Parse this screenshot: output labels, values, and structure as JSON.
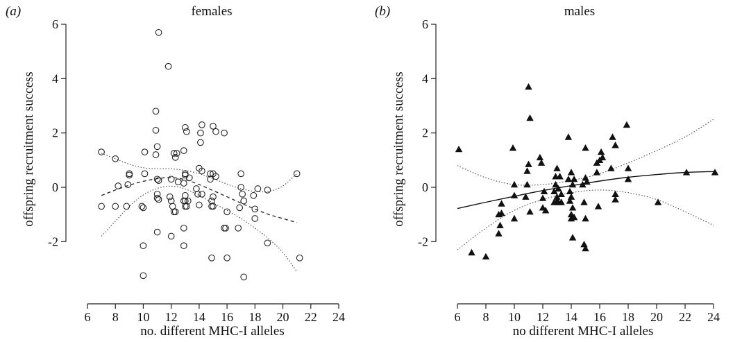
{
  "chart_data": [
    {
      "type": "scatter",
      "panel_letter": "(a)",
      "title": "females",
      "xlabel": "no. different MHC-I alleles",
      "ylabel": "offspring recruitment success",
      "xlim": [
        6,
        24
      ],
      "ylim": [
        -3.6,
        6.3
      ],
      "xticks": [
        6,
        8,
        10,
        12,
        14,
        16,
        18,
        20,
        22,
        24
      ],
      "yticks": [
        -2,
        0,
        2,
        4,
        6
      ],
      "marker": "open-circle",
      "grid": false,
      "points": [
        {
          "x": 7,
          "y": 1.3
        },
        {
          "x": 7,
          "y": -0.7
        },
        {
          "x": 8,
          "y": 1.05
        },
        {
          "x": 8,
          "y": -0.7
        },
        {
          "x": 8.2,
          "y": 0.05
        },
        {
          "x": 8.8,
          "y": -0.7
        },
        {
          "x": 8.9,
          "y": 0.1
        },
        {
          "x": 9,
          "y": 0.45
        },
        {
          "x": 9,
          "y": 0.5
        },
        {
          "x": 9.9,
          "y": -0.7
        },
        {
          "x": 10,
          "y": -0.75
        },
        {
          "x": 10,
          "y": -2.15
        },
        {
          "x": 10,
          "y": -3.25
        },
        {
          "x": 10.1,
          "y": 1.3
        },
        {
          "x": 10.1,
          "y": 0.5
        },
        {
          "x": 10.9,
          "y": 2.8
        },
        {
          "x": 10.9,
          "y": 2.1
        },
        {
          "x": 10.9,
          "y": 1.2
        },
        {
          "x": 11,
          "y": 1.5
        },
        {
          "x": 11,
          "y": 0.3
        },
        {
          "x": 11,
          "y": -0.25
        },
        {
          "x": 11,
          "y": -0.4
        },
        {
          "x": 11.1,
          "y": -0.45
        },
        {
          "x": 11,
          "y": -1.65
        },
        {
          "x": 11.1,
          "y": 5.7
        },
        {
          "x": 11.1,
          "y": 0.25
        },
        {
          "x": 11.8,
          "y": 4.45
        },
        {
          "x": 11.9,
          "y": -0.35
        },
        {
          "x": 12,
          "y": -0.5
        },
        {
          "x": 12,
          "y": -1.8
        },
        {
          "x": 12,
          "y": 0.3
        },
        {
          "x": 12.1,
          "y": -0.7
        },
        {
          "x": 12.2,
          "y": -0.9
        },
        {
          "x": 12.2,
          "y": 1.25
        },
        {
          "x": 12.3,
          "y": 1.1
        },
        {
          "x": 12.3,
          "y": -0.9
        },
        {
          "x": 12.4,
          "y": 1.25
        },
        {
          "x": 12.5,
          "y": 0.2
        },
        {
          "x": 12.9,
          "y": 1.35
        },
        {
          "x": 12.9,
          "y": 0.15
        },
        {
          "x": 12.9,
          "y": -0.5
        },
        {
          "x": 12.9,
          "y": -1.5
        },
        {
          "x": 12.9,
          "y": -2.15
        },
        {
          "x": 13,
          "y": 2.2
        },
        {
          "x": 13,
          "y": 0.5
        },
        {
          "x": 13,
          "y": 0.45
        },
        {
          "x": 13,
          "y": -0.3
        },
        {
          "x": 13,
          "y": -0.5
        },
        {
          "x": 13,
          "y": -0.7
        },
        {
          "x": 13.1,
          "y": 2.05
        },
        {
          "x": 13.1,
          "y": -0.7
        },
        {
          "x": 13.2,
          "y": -0.5
        },
        {
          "x": 13.3,
          "y": 0.35
        },
        {
          "x": 13.8,
          "y": -0.05
        },
        {
          "x": 13.9,
          "y": -0.25
        },
        {
          "x": 14,
          "y": 0.7
        },
        {
          "x": 14,
          "y": -0.65
        },
        {
          "x": 14.1,
          "y": 2.0
        },
        {
          "x": 14.1,
          "y": 1.65
        },
        {
          "x": 14.2,
          "y": 2.3
        },
        {
          "x": 14.2,
          "y": 0.6
        },
        {
          "x": 14.2,
          "y": -0.25
        },
        {
          "x": 14.8,
          "y": 0.5
        },
        {
          "x": 14.8,
          "y": 0.3
        },
        {
          "x": 14.9,
          "y": -0.5
        },
        {
          "x": 14.9,
          "y": -0.7
        },
        {
          "x": 14.9,
          "y": -2.6
        },
        {
          "x": 15,
          "y": 2.25
        },
        {
          "x": 15,
          "y": 0.5
        },
        {
          "x": 15,
          "y": -0.35
        },
        {
          "x": 15,
          "y": -0.7
        },
        {
          "x": 15.2,
          "y": 2.05
        },
        {
          "x": 15.2,
          "y": 0.4
        },
        {
          "x": 15.8,
          "y": 2.0
        },
        {
          "x": 15.8,
          "y": -1.5
        },
        {
          "x": 15.9,
          "y": -1.5
        },
        {
          "x": 16,
          "y": -2.6
        },
        {
          "x": 16,
          "y": -0.9
        },
        {
          "x": 16.8,
          "y": -1.5
        },
        {
          "x": 16.9,
          "y": -0.75
        },
        {
          "x": 17,
          "y": 0.5
        },
        {
          "x": 17,
          "y": 0.0
        },
        {
          "x": 17.1,
          "y": -0.25
        },
        {
          "x": 17.2,
          "y": -0.5
        },
        {
          "x": 17.2,
          "y": -3.3
        },
        {
          "x": 17.9,
          "y": -0.3
        },
        {
          "x": 18,
          "y": -0.8
        },
        {
          "x": 18,
          "y": -1.15
        },
        {
          "x": 18.2,
          "y": -0.05
        },
        {
          "x": 18.9,
          "y": -0.1
        },
        {
          "x": 18.9,
          "y": -2.05
        },
        {
          "x": 21,
          "y": 0.5
        },
        {
          "x": 21.2,
          "y": -2.6
        }
      ],
      "fit": {
        "style": "dashed",
        "x": [
          7,
          8,
          9,
          10,
          11,
          12,
          13,
          14,
          15,
          16,
          17,
          18,
          19,
          20,
          21
        ],
        "y": [
          -0.3,
          -0.1,
          0.08,
          0.22,
          0.32,
          0.36,
          0.28,
          0.1,
          -0.12,
          -0.35,
          -0.58,
          -0.8,
          -1.0,
          -1.15,
          -1.3
        ]
      },
      "ci_upper": {
        "style": "dotted",
        "x": [
          7,
          8,
          9,
          10,
          11,
          12,
          13,
          14,
          15,
          16,
          17,
          18,
          19,
          20,
          21
        ],
        "y": [
          1.25,
          1.05,
          0.85,
          0.72,
          0.68,
          0.68,
          0.62,
          0.5,
          0.32,
          0.12,
          -0.05,
          -0.15,
          -0.15,
          0.05,
          0.5
        ]
      },
      "ci_lower": {
        "style": "dotted",
        "x": [
          7,
          8,
          9,
          10,
          11,
          12,
          13,
          14,
          15,
          16,
          17,
          18,
          19,
          20,
          21
        ],
        "y": [
          -1.8,
          -1.25,
          -0.7,
          -0.28,
          -0.04,
          0.04,
          -0.06,
          -0.3,
          -0.58,
          -0.85,
          -1.15,
          -1.5,
          -1.9,
          -2.4,
          -3.1
        ]
      }
    },
    {
      "type": "scatter",
      "panel_letter": "(b)",
      "title": "males",
      "xlabel": "no different MHC-I alleles",
      "ylabel": "offspring recruitment success",
      "xlim": [
        6,
        24
      ],
      "ylim": [
        -3.6,
        6.3
      ],
      "xticks": [
        6,
        8,
        10,
        12,
        14,
        16,
        18,
        20,
        22,
        24
      ],
      "yticks": [
        -2,
        0,
        2,
        4,
        6
      ],
      "marker": "filled-triangle",
      "grid": false,
      "points": [
        {
          "x": 6.1,
          "y": 1.4
        },
        {
          "x": 7,
          "y": -2.4
        },
        {
          "x": 8,
          "y": -2.55
        },
        {
          "x": 8.9,
          "y": -1.7
        },
        {
          "x": 8.9,
          "y": -1.0
        },
        {
          "x": 9,
          "y": -1.4
        },
        {
          "x": 9.1,
          "y": -0.6
        },
        {
          "x": 9.1,
          "y": -0.95
        },
        {
          "x": 9.9,
          "y": 1.45
        },
        {
          "x": 10,
          "y": 0.1
        },
        {
          "x": 10,
          "y": -1.15
        },
        {
          "x": 10,
          "y": -0.3
        },
        {
          "x": 10.8,
          "y": -0.35
        },
        {
          "x": 10.9,
          "y": 0.1
        },
        {
          "x": 10.9,
          "y": 0.6
        },
        {
          "x": 11,
          "y": 0.85
        },
        {
          "x": 11,
          "y": 3.7
        },
        {
          "x": 11.1,
          "y": 2.55
        },
        {
          "x": 11.1,
          "y": -0.9
        },
        {
          "x": 11.8,
          "y": 1.1
        },
        {
          "x": 11.9,
          "y": 0.9
        },
        {
          "x": 12,
          "y": -0.4
        },
        {
          "x": 12,
          "y": -0.75
        },
        {
          "x": 12.1,
          "y": -0.15
        },
        {
          "x": 12.2,
          "y": -0.85
        },
        {
          "x": 12.8,
          "y": -0.15
        },
        {
          "x": 12.8,
          "y": -0.55
        },
        {
          "x": 12.9,
          "y": 0.1
        },
        {
          "x": 12.9,
          "y": 0.4
        },
        {
          "x": 13,
          "y": -0.35
        },
        {
          "x": 13,
          "y": -0.5
        },
        {
          "x": 13,
          "y": 0.7
        },
        {
          "x": 13.1,
          "y": -0.05
        },
        {
          "x": 13.1,
          "y": -0.55
        },
        {
          "x": 13.2,
          "y": 0.4
        },
        {
          "x": 13.3,
          "y": -0.25
        },
        {
          "x": 13.3,
          "y": -0.55
        },
        {
          "x": 13.8,
          "y": 1.85
        },
        {
          "x": 13.8,
          "y": 0.3
        },
        {
          "x": 13.9,
          "y": -0.15
        },
        {
          "x": 13.9,
          "y": -0.5
        },
        {
          "x": 14,
          "y": 0.55
        },
        {
          "x": 14,
          "y": -0.35
        },
        {
          "x": 14,
          "y": -1.0
        },
        {
          "x": 14,
          "y": -1.15
        },
        {
          "x": 14.1,
          "y": 0.1
        },
        {
          "x": 14.1,
          "y": -0.75
        },
        {
          "x": 14.1,
          "y": -1.85
        },
        {
          "x": 14.2,
          "y": 0.3
        },
        {
          "x": 14.2,
          "y": -1.1
        },
        {
          "x": 14.8,
          "y": 0.1
        },
        {
          "x": 14.9,
          "y": -0.55
        },
        {
          "x": 14.9,
          "y": -2.1
        },
        {
          "x": 15,
          "y": 1.45
        },
        {
          "x": 15,
          "y": 0.35
        },
        {
          "x": 15,
          "y": -1.15
        },
        {
          "x": 15,
          "y": -2.25
        },
        {
          "x": 15.1,
          "y": 0.2
        },
        {
          "x": 15.8,
          "y": 0.55
        },
        {
          "x": 15.8,
          "y": 0.9
        },
        {
          "x": 15.9,
          "y": -0.7
        },
        {
          "x": 16,
          "y": 1.0
        },
        {
          "x": 16.1,
          "y": 1.3
        },
        {
          "x": 16.2,
          "y": 1.1
        },
        {
          "x": 16.8,
          "y": 0.7
        },
        {
          "x": 16.9,
          "y": 1.85
        },
        {
          "x": 17.1,
          "y": 1.55
        },
        {
          "x": 17.1,
          "y": -0.25
        },
        {
          "x": 17.1,
          "y": -0.45
        },
        {
          "x": 17.9,
          "y": 2.3
        },
        {
          "x": 18,
          "y": 0.7
        },
        {
          "x": 18,
          "y": 0.3
        },
        {
          "x": 20.1,
          "y": -0.55
        },
        {
          "x": 22.1,
          "y": 0.55
        },
        {
          "x": 24.1,
          "y": 0.55
        }
      ],
      "fit": {
        "style": "solid",
        "x": [
          6,
          8,
          10,
          12,
          14,
          16,
          18,
          20,
          22,
          24
        ],
        "y": [
          -0.78,
          -0.55,
          -0.33,
          -0.12,
          0.06,
          0.23,
          0.37,
          0.47,
          0.55,
          0.58
        ]
      },
      "ci_upper": {
        "style": "dotted",
        "x": [
          6,
          8,
          10,
          12,
          14,
          16,
          18,
          20,
          22,
          24
        ],
        "y": [
          0.8,
          0.35,
          0.1,
          0.1,
          0.25,
          0.5,
          0.9,
          1.35,
          1.85,
          2.5
        ]
      },
      "ci_lower": {
        "style": "dotted",
        "x": [
          6,
          8,
          10,
          12,
          14,
          16,
          18,
          20,
          22,
          24
        ],
        "y": [
          -2.3,
          -1.5,
          -0.85,
          -0.45,
          -0.2,
          -0.1,
          -0.2,
          -0.45,
          -0.9,
          -1.4
        ]
      }
    }
  ]
}
